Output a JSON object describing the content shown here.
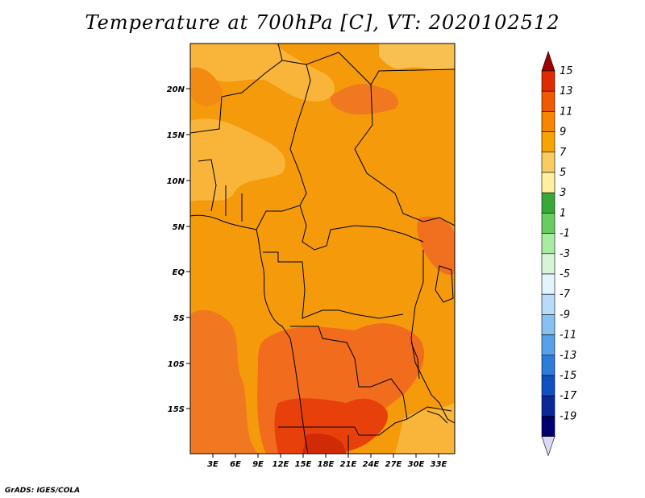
{
  "title": "Temperature at 700hPa [C], VT: 2020102512",
  "credit": "GrADS: IGES/COLA",
  "map": {
    "lat_labels": [
      "20N",
      "15N",
      "10N",
      "5N",
      "EQ",
      "5S",
      "10S",
      "15S"
    ],
    "lon_labels": [
      "3E",
      "6E",
      "9E",
      "12E",
      "15E",
      "18E",
      "21E",
      "24E",
      "27E",
      "30E",
      "33E"
    ],
    "region": "Central / West-Central Africa",
    "field": "Temperature at 700hPa"
  },
  "colorbar": {
    "labels": [
      "15",
      "13",
      "11",
      "9",
      "7",
      "5",
      "3",
      "1",
      "-1",
      "-3",
      "-5",
      "-7",
      "-9",
      "-11",
      "-13",
      "-15",
      "-17",
      "-19"
    ],
    "colors": [
      "#a00000",
      "#e02a00",
      "#f05a00",
      "#f58800",
      "#f8a400",
      "#f8cc60",
      "#fff0a0",
      "#38a838",
      "#68cc60",
      "#a8eca0",
      "#d8f4d8",
      "#e4f4fc",
      "#b8dcf8",
      "#88c0f0",
      "#58a0e8",
      "#2c7cd8",
      "#1050c0",
      "#0a2898",
      "#000070",
      "#d8d8f8"
    ]
  }
}
